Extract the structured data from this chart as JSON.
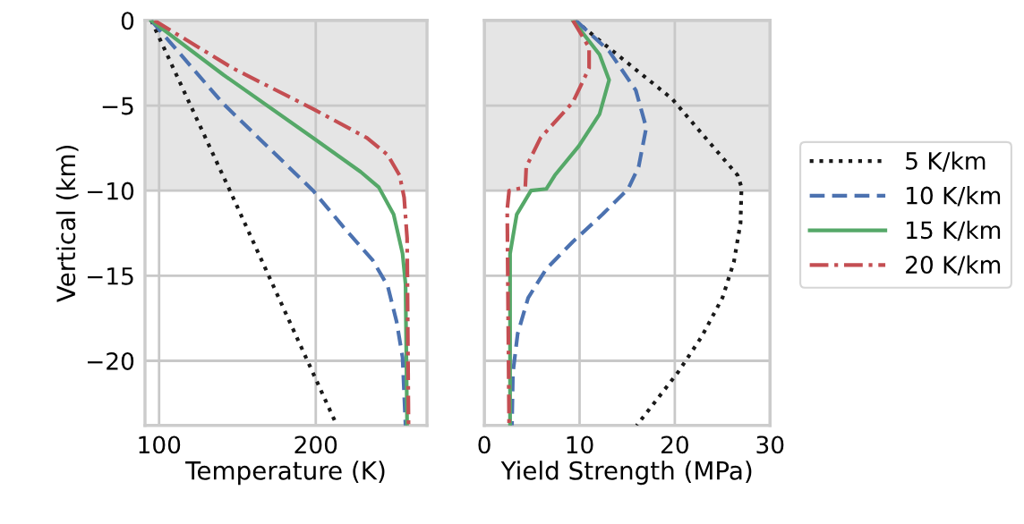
{
  "chart_data": [
    {
      "type": "line",
      "xlabel": "Temperature (K)",
      "ylabel": "Vertical (km)",
      "xlim": [
        91,
        271
      ],
      "xticks": [
        100,
        200
      ],
      "ylim": [
        -23.8,
        0
      ],
      "yticks": [
        0,
        {
          "value": -5,
          "label": "−5"
        },
        {
          "value": -10,
          "label": "−10"
        },
        {
          "value": -15,
          "label": "−15"
        },
        {
          "value": -20,
          "label": "−20"
        }
      ],
      "grid": true,
      "bands": [
        {
          "axis": "y",
          "from": -10,
          "to": 0,
          "color": "#e5e5e5"
        }
      ],
      "series": [
        {
          "color": "#1a1a1a",
          "line_style": "dotted",
          "x": [
            95,
            145.2,
            213.5
          ],
          "values": [
            0,
            -10,
            -23.8
          ]
        },
        {
          "color": "#4c72b0",
          "line_style": "dashed",
          "x": [
            95,
            141,
            198.3,
            217.3,
            236.4,
            245.9,
            251.6,
            255.4,
            257.3
          ],
          "values": [
            0,
            -4.9,
            -10,
            -12.1,
            -14.1,
            -15.6,
            -17.7,
            -19.8,
            -23.8
          ]
        },
        {
          "color": "#55a868",
          "line_style": "solid",
          "x": [
            95,
            141.1,
            198.3,
            228.7,
            240.2,
            249.7,
            255.4,
            257.3,
            258.3
          ],
          "values": [
            0,
            -3.2,
            -6.9,
            -8.9,
            -9.8,
            -11.4,
            -13.7,
            -15.5,
            -23.8
          ]
        },
        {
          "color": "#c44e52",
          "line_style": "dashdot",
          "x": [
            97,
            146.9,
            198.3,
            232.6,
            245.9,
            253.5,
            256.4,
            258.3,
            259.2
          ],
          "values": [
            0,
            -2.8,
            -5.2,
            -6.9,
            -7.9,
            -9.1,
            -10.4,
            -12.8,
            -23.8
          ]
        }
      ]
    },
    {
      "type": "line",
      "xlabel": "Yield Strength (MPa)",
      "xlim": [
        0,
        30
      ],
      "xticks": [
        0,
        10,
        20,
        30
      ],
      "ylim": [
        -23.8,
        0
      ],
      "yticks": [
        0,
        -5,
        -10,
        -15,
        -20
      ],
      "grid": true,
      "tick_labels": "x",
      "legend": "right",
      "bands": [
        {
          "axis": "y",
          "from": -10,
          "to": 0,
          "color": "#e5e5e5"
        }
      ],
      "series": [
        {
          "name": "5 K/km",
          "color": "#1a1a1a",
          "line_style": "dotted",
          "x": [
            9.5,
            19.7,
            26.6,
            27.0,
            26.9,
            26.2,
            25.0,
            22.8,
            20.3,
            16.0
          ],
          "values": [
            0,
            -4.6,
            -9.1,
            -9.8,
            -11.9,
            -14.2,
            -16.3,
            -18.6,
            -20.7,
            -23.8
          ]
        },
        {
          "name": "10 K/km",
          "color": "#4c72b0",
          "line_style": "dashed",
          "x": [
            9.6,
            13.1,
            15.9,
            17.0,
            16.2,
            15.1,
            12.4,
            9.3,
            6.5,
            4.6,
            3.5,
            3.0,
            2.9
          ],
          "values": [
            0,
            -1.8,
            -4.1,
            -6.3,
            -8.6,
            -9.9,
            -11.4,
            -13.0,
            -14.6,
            -16.3,
            -18.4,
            -20.7,
            -23.8
          ]
        },
        {
          "name": "15 K/km",
          "color": "#55a868",
          "line_style": "solid",
          "x": [
            9.3,
            12.1,
            13.1,
            12.1,
            9.9,
            7.4,
            6.5,
            4.9,
            3.4,
            2.7,
            2.7
          ],
          "values": [
            0,
            -2.0,
            -3.5,
            -5.5,
            -7.4,
            -9.1,
            -9.9,
            -10.0,
            -11.4,
            -13.7,
            -23.8
          ]
        },
        {
          "name": "20 K/km",
          "color": "#c44e52",
          "line_style": "dashdot",
          "x": [
            9.3,
            11.0,
            11.0,
            9.3,
            5.9,
            4.4,
            4.3,
            2.6,
            2.4,
            2.6
          ],
          "values": [
            0,
            -1.6,
            -2.8,
            -4.8,
            -6.9,
            -8.6,
            -9.8,
            -10.0,
            -11.1,
            -23.8
          ]
        }
      ]
    }
  ]
}
